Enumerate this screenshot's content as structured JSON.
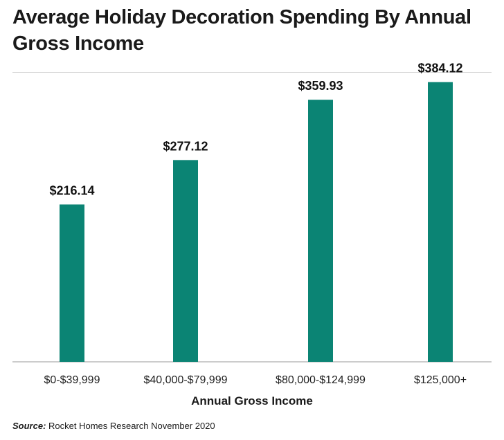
{
  "chart_data": {
    "type": "bar",
    "title": "Average Holiday Decoration Spending By Annual Gross Income",
    "xlabel": "Annual Gross Income",
    "ylabel": "",
    "categories": [
      "$0-$39,999",
      "$40,000-$79,999",
      "$80,000-$124,999",
      "$125,000+"
    ],
    "values": [
      216.14,
      277.12,
      359.93,
      384.12
    ],
    "data_labels": [
      "$216.14",
      "$277.12",
      "$359.93",
      "$384.12"
    ],
    "ylim": [
      0,
      400
    ],
    "grid": false,
    "bar_color": "#0b8474"
  },
  "source": {
    "label": "Source:",
    "text": "Rocket Homes Research November 2020"
  }
}
